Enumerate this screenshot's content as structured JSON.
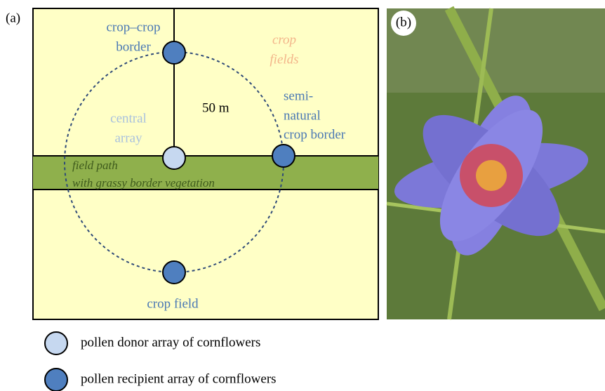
{
  "panel_a": {
    "label": "(a)",
    "labels": {
      "crop_crop_border": [
        "crop–crop",
        "border"
      ],
      "crop_fields": [
        "crop",
        "fields"
      ],
      "distance": "50 m",
      "semi_natural": [
        "semi-",
        "natural",
        "crop border"
      ],
      "central_array": [
        "central",
        "array"
      ],
      "field_path": [
        "field path",
        "with grassy border vegetation"
      ],
      "crop_field": "crop field"
    }
  },
  "panel_b": {
    "label": "(b)"
  },
  "legend": [
    {
      "label": "pollen donor array of cornflowers"
    },
    {
      "label": "pollen recipient array of cornflowers"
    }
  ]
}
